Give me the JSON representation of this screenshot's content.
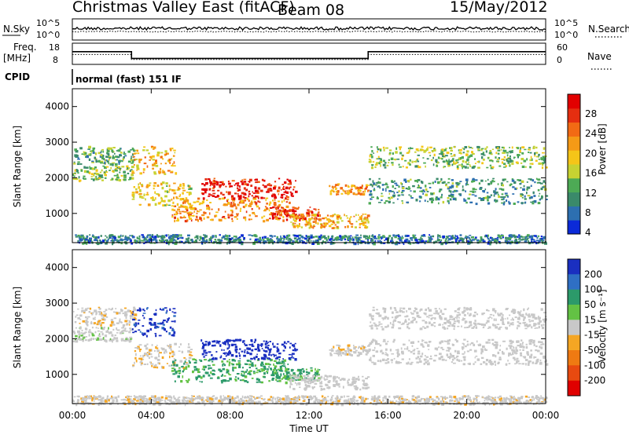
{
  "chart_data": {
    "type": "heatmap",
    "title_left": "Christmas Valley East (fitACF)",
    "title_mid": "Beam 08",
    "title_right": "15/May/2012",
    "xlabel": "Time UT",
    "x_ticks": [
      "00:00",
      "04:00",
      "08:00",
      "12:00",
      "16:00",
      "20:00",
      "00:00"
    ],
    "x_range_hours": [
      0,
      24
    ],
    "nsky_panel": {
      "left_label": "N.Sky",
      "left_ticks": [
        "10^5",
        "10^0"
      ],
      "right_label": "N.Search",
      "right_ticks": [
        "10^5",
        "10^0"
      ],
      "nsky_level": 0.55,
      "nsearch_level": 0.4
    },
    "freq_panel": {
      "left_label_1": "Freq.",
      "left_label_2": "[MHz]",
      "left_ticks": [
        "18",
        "8"
      ],
      "right_label": "Nave",
      "right_ticks": [
        "60",
        "0"
      ],
      "freq_steps": [
        {
          "start": 0.0,
          "end": 3.0,
          "mhz": 14.0
        },
        {
          "start": 3.0,
          "end": 15.0,
          "mhz": 10.8
        },
        {
          "start": 15.0,
          "end": 24.0,
          "mhz": 14.0
        }
      ],
      "nave_steps": [
        {
          "start": 0.0,
          "end": 3.0,
          "value": 28
        },
        {
          "start": 3.0,
          "end": 15.0,
          "value": 14
        },
        {
          "start": 15.0,
          "end": 24.0,
          "value": 28
        }
      ]
    },
    "cpid": {
      "label": "CPID",
      "text": "normal (fast) 151 IF"
    },
    "power_panel": {
      "ylabel": "Slant Range [km]",
      "y_ticks": [
        1000,
        2000,
        3000,
        4000
      ],
      "y_range_km": [
        180,
        4500
      ],
      "colorbar_label": "Power [dB]",
      "colorbar_ticks": [
        "28",
        "24",
        "20",
        "16",
        "12",
        "8",
        "4"
      ],
      "colors": [
        "#0b2ad8",
        "#2d6fb0",
        "#3a8a6a",
        "#4daa55",
        "#c7d232",
        "#f5c518",
        "#f59a16",
        "#f26a14",
        "#e52e10",
        "#e20000"
      ]
    },
    "velocity_panel": {
      "ylabel": "Slant Range [km]",
      "y_ticks": [
        1000,
        2000,
        3000,
        4000
      ],
      "y_range_km": [
        180,
        4500
      ],
      "colorbar_label": "Velocity [m s⁻¹]",
      "colorbar_ticks": [
        "200",
        "100",
        "50",
        "15",
        "-15",
        "-50",
        "-100",
        "-200"
      ],
      "colors": [
        "#1a2fc0",
        "#2f6fc4",
        "#2c9a6a",
        "#63c244",
        "#c8c8c8",
        "#f5a623",
        "#ef7a12",
        "#e84a10",
        "#e00000"
      ]
    },
    "echo_regions": [
      {
        "t0": 0.0,
        "t1": 3.2,
        "r0": 2400,
        "r1": 2900,
        "power": 10,
        "velocity": -5
      },
      {
        "t0": 0.0,
        "t1": 3.0,
        "r0": 1950,
        "r1": 2350,
        "power": 12,
        "velocity": 5
      },
      {
        "t0": 3.0,
        "t1": 5.2,
        "r0": 2100,
        "r1": 2900,
        "power": 18,
        "velocity": 160
      },
      {
        "t0": 3.0,
        "t1": 6.0,
        "r0": 1200,
        "r1": 1900,
        "power": 16,
        "velocity": -10
      },
      {
        "t0": 5.0,
        "t1": 11.0,
        "r0": 800,
        "r1": 1450,
        "power": 20,
        "velocity": 40
      },
      {
        "t0": 6.5,
        "t1": 11.3,
        "r0": 1450,
        "r1": 2000,
        "power": 28,
        "velocity": 180
      },
      {
        "t0": 10.0,
        "t1": 12.5,
        "r0": 850,
        "r1": 1200,
        "power": 26,
        "velocity": 40
      },
      {
        "t0": 11.0,
        "t1": 15.0,
        "r0": 600,
        "r1": 1000,
        "power": 18,
        "velocity": 0
      },
      {
        "t0": 13.0,
        "t1": 15.0,
        "r0": 1550,
        "r1": 1850,
        "power": 20,
        "velocity": -5
      },
      {
        "t0": 15.0,
        "t1": 24.0,
        "r0": 2300,
        "r1": 2900,
        "power": 12,
        "velocity": 0
      },
      {
        "t0": 15.0,
        "t1": 24.0,
        "r0": 1300,
        "r1": 2000,
        "power": 8,
        "velocity": 0
      },
      {
        "t0": 0.0,
        "t1": 24.0,
        "r0": 180,
        "r1": 420,
        "power": 6,
        "velocity": -5
      }
    ]
  }
}
